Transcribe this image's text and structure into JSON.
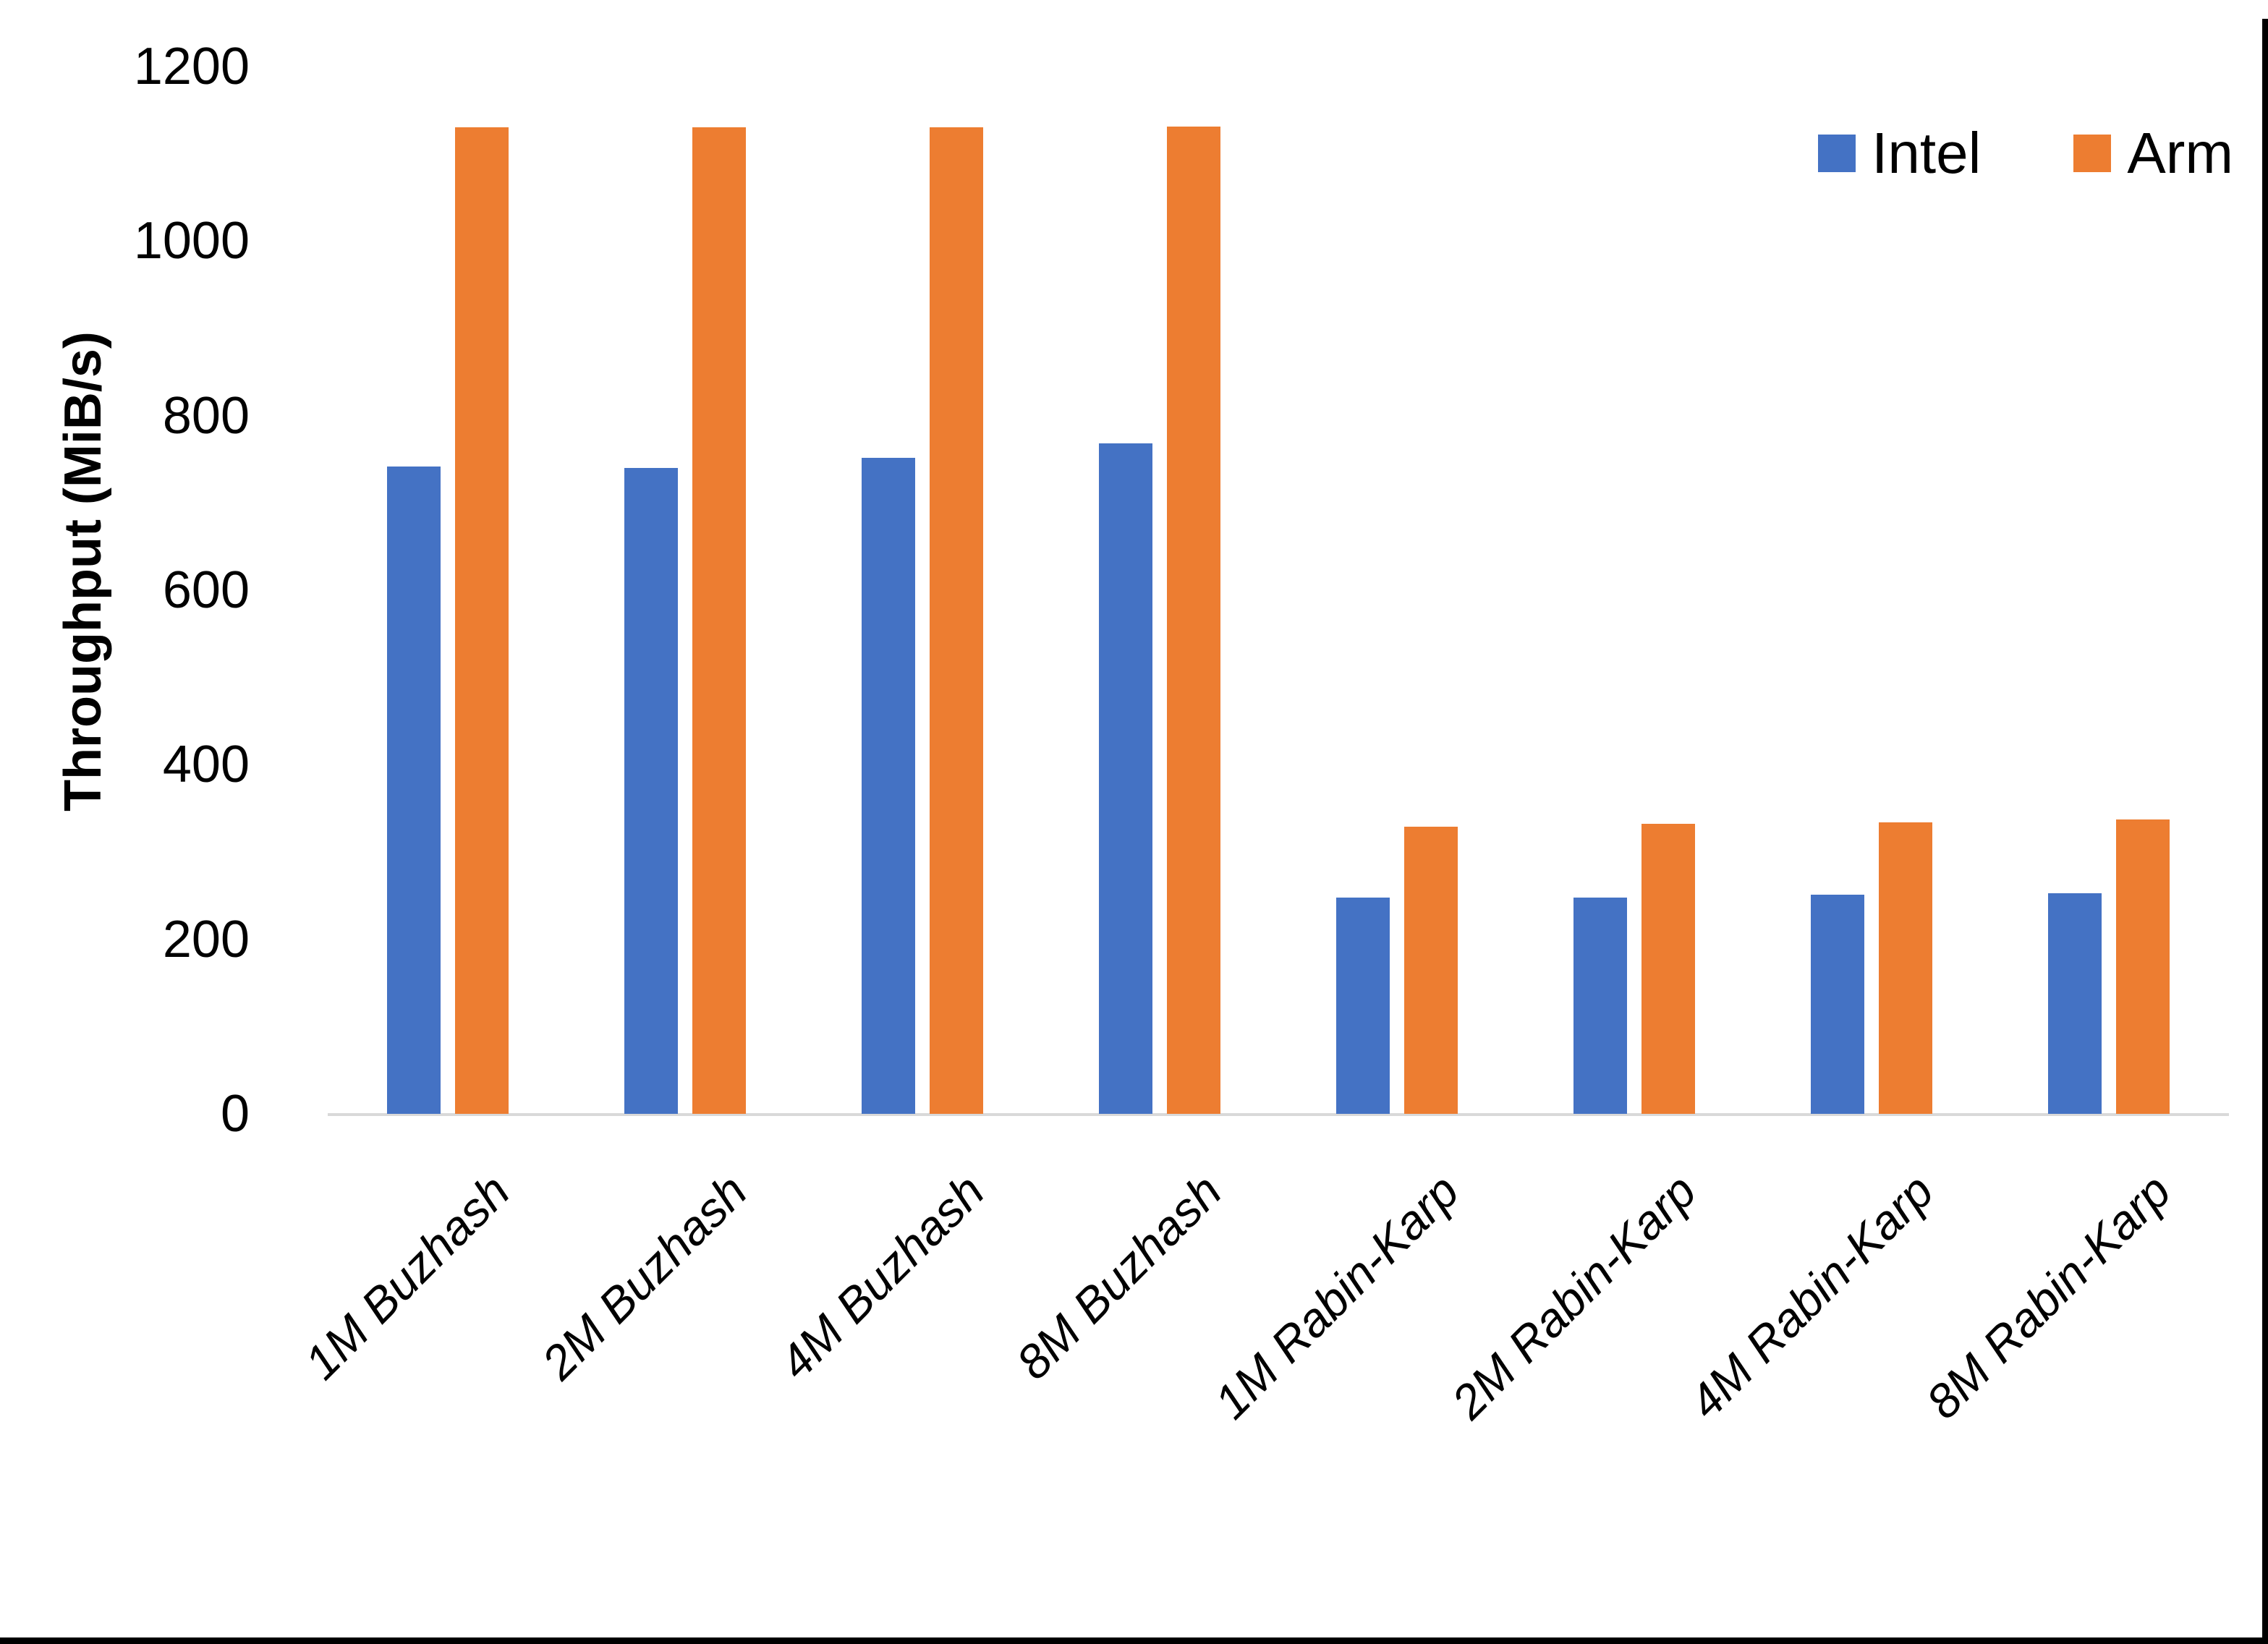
{
  "chart_data": {
    "type": "bar",
    "title": "",
    "xlabel": "",
    "ylabel": "Throughput (MiB/s)",
    "ylim": [
      0,
      1200
    ],
    "y_ticks": [
      0,
      200,
      400,
      600,
      800,
      1000,
      1200
    ],
    "grid": false,
    "legend_position": "top-right",
    "categories": [
      "1M Buzhash",
      "2M Buzhash",
      "4M Buzhash",
      "8M Buzhash",
      "1M Rabin-Karp",
      "2M Rabin-Karp",
      "4M Rabin-Karp",
      "8M Rabin-Karp"
    ],
    "series": [
      {
        "name": "Intel",
        "color": "#4472C4",
        "values": [
          742,
          740,
          752,
          768,
          248,
          248,
          251,
          253
        ]
      },
      {
        "name": "Arm",
        "color": "#ED7D31",
        "values": [
          1130,
          1130,
          1130,
          1131,
          329,
          332,
          334,
          337
        ]
      }
    ]
  },
  "colors": {
    "axis_line": "#D9D9D9",
    "text": "#000000",
    "background": "#FFFFFF",
    "border": "#000000"
  }
}
